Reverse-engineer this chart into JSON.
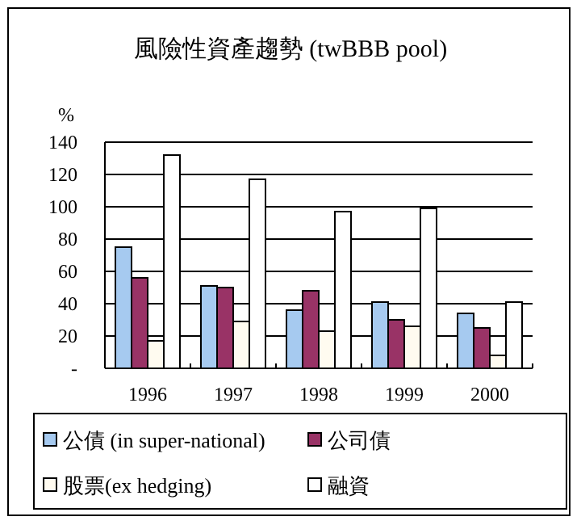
{
  "chart_data": {
    "type": "bar",
    "title": "風險性資產趨勢 (twBBB pool)",
    "ylabel": "%",
    "categories": [
      "1996",
      "1997",
      "1998",
      "1999",
      "2000"
    ],
    "series": [
      {
        "name": "公債 (in super-national)",
        "color": "#a6caf0",
        "values": [
          75,
          51,
          36,
          41,
          34
        ]
      },
      {
        "name": "公司債",
        "color": "#993366",
        "values": [
          56,
          50,
          48,
          30,
          25
        ]
      },
      {
        "name": "股票(ex hedging)",
        "color": "#fffbf0",
        "values": [
          17,
          29,
          23,
          26,
          8
        ]
      },
      {
        "name": "融資",
        "color": "#ffffff",
        "values": [
          132,
          117,
          97,
          99,
          41
        ]
      }
    ],
    "ylim": [
      0,
      140
    ],
    "yticks": [
      {
        "value": 0,
        "label": "-"
      },
      20,
      40,
      60,
      80,
      100,
      120,
      140
    ],
    "grid": "y",
    "legend": "bottom"
  }
}
